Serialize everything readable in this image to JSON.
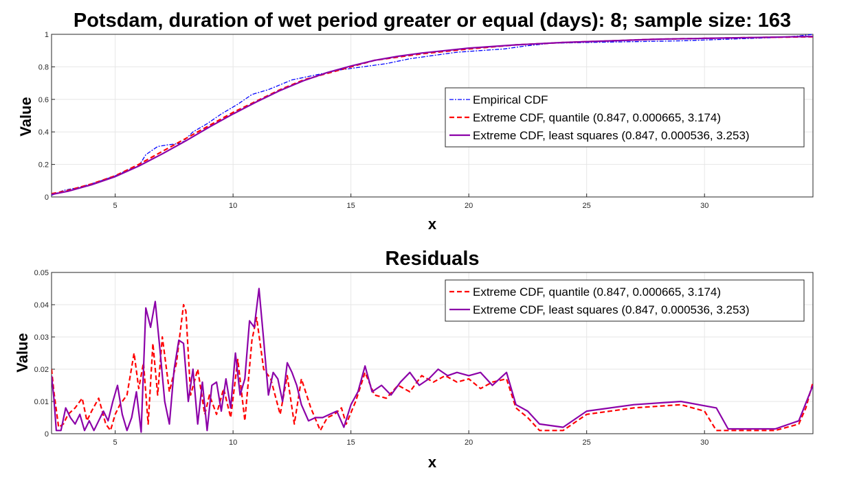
{
  "chart_data": [
    {
      "type": "line",
      "title": "Potsdam, duration of wet period greater or equal (days): 8; sample size: 163",
      "xlabel": "x",
      "ylabel": "Value",
      "xlim": [
        2.3,
        34.6
      ],
      "ylim": [
        0,
        1
      ],
      "xticks": [
        5,
        10,
        15,
        20,
        25,
        30
      ],
      "yticks": [
        0,
        0.2,
        0.4,
        0.6,
        0.8,
        1
      ],
      "ytick_labels": [
        "0",
        "0.2",
        "0.4",
        "0.6",
        "0.8",
        "1"
      ],
      "grid": true,
      "legend_position": "center-right",
      "series": [
        {
          "name": "Empirical CDF",
          "color": "#0000ff",
          "style": "dashdot",
          "x": [
            2.3,
            2.8,
            3.5,
            4.2,
            5.0,
            5.6,
            6.0,
            6.3,
            6.8,
            7.2,
            7.8,
            8.3,
            8.9,
            9.5,
            10.2,
            10.8,
            11.5,
            12.5,
            13.5,
            14.5,
            15.5,
            16.5,
            17.5,
            18.5,
            19.5,
            20.5,
            21.5,
            22.5,
            23.5,
            25,
            27,
            29,
            31,
            33,
            34,
            34.6
          ],
          "y": [
            0.01,
            0.04,
            0.06,
            0.09,
            0.13,
            0.17,
            0.19,
            0.26,
            0.31,
            0.32,
            0.33,
            0.4,
            0.45,
            0.51,
            0.57,
            0.63,
            0.66,
            0.72,
            0.75,
            0.78,
            0.8,
            0.82,
            0.85,
            0.87,
            0.89,
            0.9,
            0.91,
            0.93,
            0.945,
            0.95,
            0.955,
            0.96,
            0.97,
            0.98,
            0.99,
            1.0
          ]
        },
        {
          "name": "Extreme CDF, quantile (0.847, 0.000665, 3.174)",
          "color": "#ff0000",
          "style": "dashed",
          "x": [
            2.3,
            3,
            4,
            5,
            6,
            7,
            8,
            9,
            10,
            11,
            12,
            13,
            14,
            15,
            16,
            17,
            18,
            20,
            22,
            24,
            26,
            28,
            30,
            32,
            34.6
          ],
          "y": [
            0.02,
            0.04,
            0.08,
            0.13,
            0.2,
            0.28,
            0.36,
            0.44,
            0.52,
            0.59,
            0.66,
            0.72,
            0.76,
            0.8,
            0.84,
            0.86,
            0.88,
            0.91,
            0.935,
            0.95,
            0.96,
            0.97,
            0.975,
            0.98,
            0.985
          ]
        },
        {
          "name": "Extreme CDF, least squares (0.847, 0.000536, 3.253)",
          "color": "#8b00a8",
          "style": "solid",
          "x": [
            2.3,
            3,
            4,
            5,
            6,
            7,
            8,
            9,
            10,
            11,
            12,
            13,
            14,
            15,
            16,
            17,
            18,
            20,
            22,
            24,
            26,
            28,
            30,
            32,
            34.6
          ],
          "y": [
            0.015,
            0.035,
            0.075,
            0.125,
            0.19,
            0.265,
            0.345,
            0.43,
            0.51,
            0.585,
            0.655,
            0.715,
            0.765,
            0.805,
            0.84,
            0.865,
            0.885,
            0.915,
            0.935,
            0.95,
            0.96,
            0.97,
            0.975,
            0.98,
            0.987
          ]
        }
      ]
    },
    {
      "type": "line",
      "title": "Residuals",
      "xlabel": "x",
      "ylabel": "Value",
      "xlim": [
        2.3,
        34.6
      ],
      "ylim": [
        0,
        0.05
      ],
      "xticks": [
        5,
        10,
        15,
        20,
        25,
        30
      ],
      "yticks": [
        0,
        0.01,
        0.02,
        0.03,
        0.04,
        0.05
      ],
      "ytick_labels": [
        "0",
        "0.01",
        "0.02",
        "0.03",
        "0.04",
        "0.05"
      ],
      "grid": true,
      "legend_position": "top-right",
      "series": [
        {
          "name": "Extreme CDF, quantile (0.847, 0.000665, 3.174)",
          "color": "#ff0000",
          "style": "dashed",
          "x": [
            2.3,
            2.4,
            2.6,
            2.8,
            3.0,
            3.3,
            3.6,
            3.8,
            4.0,
            4.3,
            4.6,
            4.8,
            5.0,
            5.2,
            5.5,
            5.8,
            6.0,
            6.2,
            6.4,
            6.6,
            6.8,
            7.0,
            7.3,
            7.6,
            7.9,
            8.0,
            8.2,
            8.5,
            8.8,
            9.0,
            9.3,
            9.6,
            9.9,
            10.2,
            10.5,
            10.8,
            11.0,
            11.3,
            11.6,
            12.0,
            12.3,
            12.6,
            12.9,
            13.3,
            13.7,
            14.0,
            14.3,
            14.6,
            14.8,
            15.2,
            15.6,
            16.0,
            16.5,
            17.0,
            17.5,
            18.0,
            18.5,
            19.0,
            19.5,
            20.0,
            20.5,
            21.0,
            21.6,
            22.0,
            22.5,
            23.0,
            24.0,
            25.0,
            27.0,
            29.0,
            30.0,
            30.5,
            31.5,
            33.0,
            34.0,
            34.3,
            34.6
          ],
          "y": [
            0.02,
            0.013,
            0.002,
            0.003,
            0.006,
            0.008,
            0.011,
            0.004,
            0.007,
            0.011,
            0.003,
            0.001,
            0.006,
            0.009,
            0.012,
            0.025,
            0.014,
            0.022,
            0.003,
            0.028,
            0.012,
            0.03,
            0.013,
            0.022,
            0.04,
            0.038,
            0.012,
            0.02,
            0.006,
            0.012,
            0.006,
            0.014,
            0.005,
            0.023,
            0.004,
            0.029,
            0.036,
            0.02,
            0.017,
            0.006,
            0.018,
            0.003,
            0.017,
            0.008,
            0.001,
            0.005,
            0.006,
            0.008,
            0.003,
            0.01,
            0.019,
            0.012,
            0.011,
            0.015,
            0.013,
            0.018,
            0.016,
            0.018,
            0.016,
            0.017,
            0.014,
            0.016,
            0.017,
            0.008,
            0.005,
            0.001,
            0.001,
            0.006,
            0.008,
            0.009,
            0.007,
            0.001,
            0.001,
            0.001,
            0.003,
            0.008,
            0.016
          ]
        },
        {
          "name": "Extreme CDF, least squares (0.847, 0.000536, 3.253)",
          "color": "#8b00a8",
          "style": "solid",
          "x": [
            2.3,
            2.4,
            2.5,
            2.7,
            2.9,
            3.1,
            3.3,
            3.5,
            3.7,
            3.9,
            4.1,
            4.3,
            4.5,
            4.7,
            4.9,
            5.1,
            5.3,
            5.5,
            5.7,
            5.9,
            6.1,
            6.3,
            6.5,
            6.7,
            6.9,
            7.1,
            7.3,
            7.5,
            7.7,
            7.9,
            8.1,
            8.3,
            8.5,
            8.7,
            8.9,
            9.1,
            9.3,
            9.5,
            9.7,
            9.9,
            10.1,
            10.3,
            10.5,
            10.7,
            10.9,
            11.1,
            11.3,
            11.5,
            11.7,
            11.9,
            12.1,
            12.3,
            12.5,
            12.7,
            12.9,
            13.2,
            13.5,
            13.8,
            14.1,
            14.4,
            14.7,
            15.0,
            15.3,
            15.6,
            15.9,
            16.3,
            16.7,
            17.1,
            17.5,
            17.9,
            18.3,
            18.7,
            19.1,
            19.5,
            20.0,
            20.5,
            21.0,
            21.6,
            22.0,
            22.5,
            23.0,
            24.0,
            25.0,
            27.0,
            29.0,
            30.5,
            31.0,
            33.0,
            34.0,
            34.6
          ],
          "y": [
            0.018,
            0.011,
            0.001,
            0.001,
            0.008,
            0.005,
            0.003,
            0.006,
            0.001,
            0.004,
            0.001,
            0.004,
            0.007,
            0.004,
            0.01,
            0.015,
            0.006,
            0.001,
            0.005,
            0.013,
            0.0005,
            0.039,
            0.033,
            0.041,
            0.026,
            0.01,
            0.003,
            0.02,
            0.029,
            0.028,
            0.01,
            0.02,
            0.003,
            0.016,
            0.001,
            0.015,
            0.016,
            0.007,
            0.017,
            0.008,
            0.025,
            0.012,
            0.017,
            0.035,
            0.033,
            0.045,
            0.029,
            0.012,
            0.019,
            0.017,
            0.01,
            0.022,
            0.019,
            0.015,
            0.009,
            0.004,
            0.005,
            0.005,
            0.006,
            0.007,
            0.002,
            0.009,
            0.013,
            0.021,
            0.013,
            0.015,
            0.012,
            0.016,
            0.019,
            0.015,
            0.017,
            0.02,
            0.018,
            0.019,
            0.018,
            0.019,
            0.015,
            0.019,
            0.009,
            0.007,
            0.003,
            0.002,
            0.007,
            0.009,
            0.01,
            0.008,
            0.0015,
            0.0015,
            0.004,
            0.015
          ]
        }
      ]
    }
  ]
}
